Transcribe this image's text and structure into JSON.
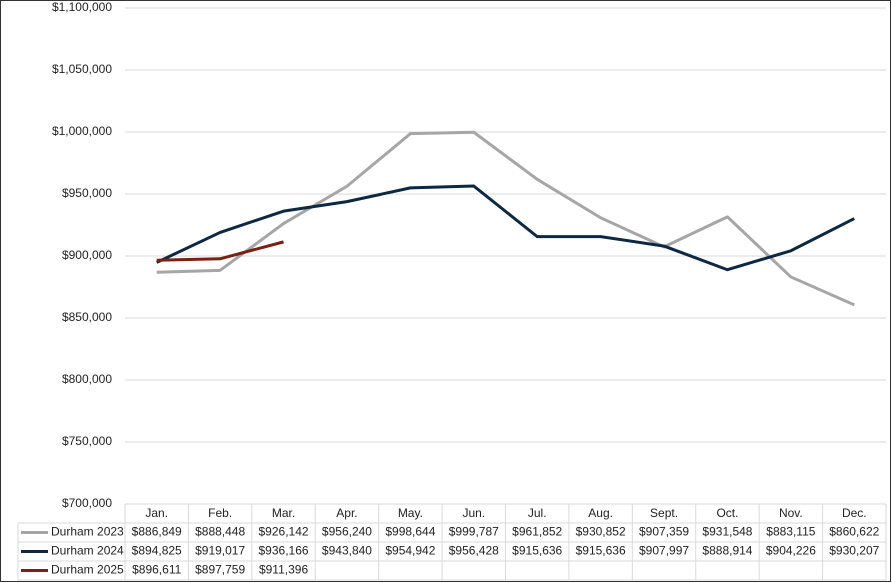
{
  "chart_data": {
    "type": "line",
    "categories": [
      "Jan.",
      "Feb.",
      "Mar.",
      "Apr.",
      "May.",
      "Jun.",
      "Jul.",
      "Aug.",
      "Sept.",
      "Oct.",
      "Nov.",
      "Dec."
    ],
    "series": [
      {
        "name": "Durham 2023",
        "color": "#a6a6a6",
        "values": [
          886849,
          888448,
          926142,
          956240,
          998644,
          999787,
          961852,
          930852,
          907359,
          931548,
          883115,
          860622
        ],
        "value_labels": [
          "$886,849",
          "$888,448",
          "$926,142",
          "$956,240",
          "$998,644",
          "$999,787",
          "$961,852",
          "$930,852",
          "$907,359",
          "$931,548",
          "$883,115",
          "$860,622"
        ]
      },
      {
        "name": "Durham 2024",
        "color": "#0e2841",
        "values": [
          894825,
          919017,
          936166,
          943840,
          954942,
          956428,
          915636,
          915636,
          907997,
          888914,
          904226,
          930207
        ],
        "value_labels": [
          "$894,825",
          "$919,017",
          "$936,166",
          "$943,840",
          "$954,942",
          "$956,428",
          "$915,636",
          "$915,636",
          "$907,997",
          "$888,914",
          "$904,226",
          "$930,207"
        ]
      },
      {
        "name": "Durham 2025",
        "color": "#7b2015",
        "values": [
          896611,
          897759,
          911396,
          null,
          null,
          null,
          null,
          null,
          null,
          null,
          null,
          null
        ],
        "value_labels": [
          "$896,611",
          "$897,759",
          "$911,396",
          null,
          null,
          null,
          null,
          null,
          null,
          null,
          null,
          null
        ]
      }
    ],
    "ylim": [
      700000,
      1100000
    ],
    "yticks": [
      {
        "value": 700000,
        "label": "$700,000"
      },
      {
        "value": 750000,
        "label": "$750,000"
      },
      {
        "value": 800000,
        "label": "$800,000"
      },
      {
        "value": 850000,
        "label": "$850,000"
      },
      {
        "value": 900000,
        "label": "$900,000"
      },
      {
        "value": 950000,
        "label": "$950,000"
      },
      {
        "value": 1000000,
        "label": "$1,000,000"
      },
      {
        "value": 1050000,
        "label": "$1,050,000"
      },
      {
        "value": 1100000,
        "label": "$1,100,000"
      }
    ],
    "grid": true
  }
}
